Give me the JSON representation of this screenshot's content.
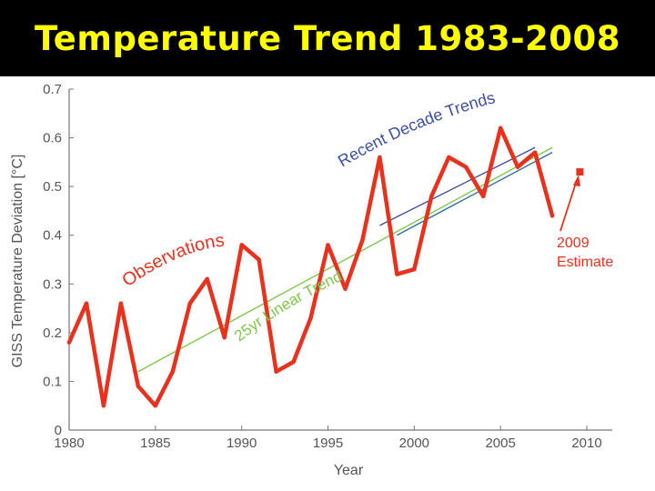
{
  "slide": {
    "title": "Temperature Trend 1983-2008"
  },
  "chart_data": {
    "type": "line",
    "title": "",
    "xlabel": "Year",
    "ylabel": "GISS Temperature Deviation [°C]",
    "xlim": [
      1980,
      2010
    ],
    "ylim": [
      0,
      0.7
    ],
    "x_ticks": [
      "1980",
      "1985",
      "1990",
      "1995",
      "2000",
      "2005",
      "2010"
    ],
    "y_ticks": [
      "0",
      "0.1",
      "0.2",
      "0.3",
      "0.4",
      "0.5",
      "0.6",
      "0.7"
    ],
    "grid": false,
    "series": [
      {
        "name": "Observations",
        "color": "#e8321e",
        "x": [
          1980,
          1981,
          1982,
          1983,
          1984,
          1985,
          1986,
          1987,
          1988,
          1989,
          1990,
          1991,
          1992,
          1993,
          1994,
          1995,
          1996,
          1997,
          1998,
          1999,
          2000,
          2001,
          2002,
          2003,
          2004,
          2005,
          2006,
          2007,
          2008
        ],
        "y": [
          0.18,
          0.26,
          0.05,
          0.26,
          0.09,
          0.05,
          0.12,
          0.26,
          0.31,
          0.19,
          0.38,
          0.35,
          0.12,
          0.14,
          0.23,
          0.38,
          0.29,
          0.39,
          0.56,
          0.32,
          0.33,
          0.48,
          0.56,
          0.54,
          0.48,
          0.62,
          0.54,
          0.57,
          0.44
        ]
      },
      {
        "name": "25yr Linear Trend",
        "color": "#7ec84a",
        "x": [
          1984,
          2008
        ],
        "y": [
          0.12,
          0.58
        ]
      },
      {
        "name": "Recent Decade Trends",
        "color": "#3f4fa8",
        "x": [
          1998,
          2007
        ],
        "y": [
          0.42,
          0.58
        ]
      },
      {
        "name": "Recent Decade Trends",
        "color": "#2f6f9a",
        "x": [
          1999,
          2008
        ],
        "y": [
          0.4,
          0.57
        ]
      }
    ],
    "estimate": {
      "x": 2009.6,
      "y": 0.53,
      "color": "#e8321e"
    },
    "annotations": {
      "observations": "Observations",
      "linear_trend": "25yr Linear Trend",
      "recent_trends": "Recent Decade Trends",
      "estimate_line1": "2009",
      "estimate_line2": "Estimate"
    }
  }
}
